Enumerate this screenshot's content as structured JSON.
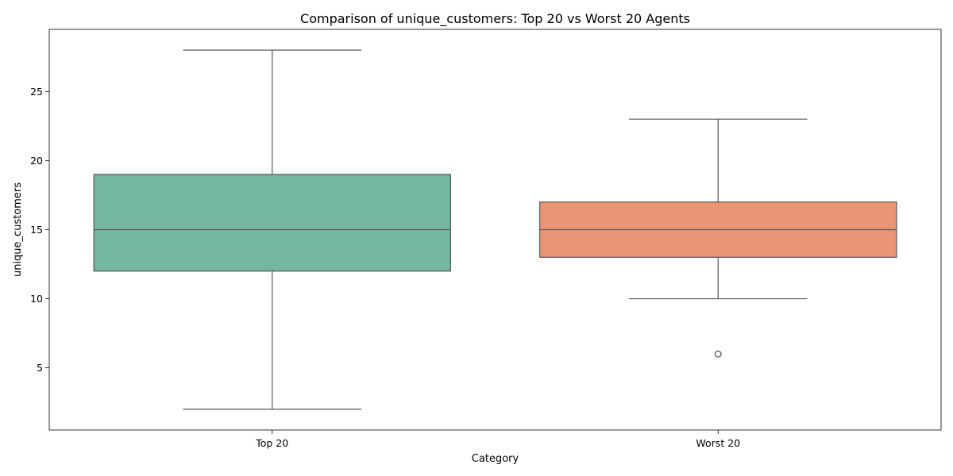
{
  "chart_data": {
    "type": "box",
    "title": "Comparison of unique_customers: Top 20 vs Worst 20 Agents",
    "xlabel": "Category",
    "ylabel": "unique_customers",
    "ylim": [
      0.5,
      29.5
    ],
    "yticks": [
      5,
      10,
      15,
      20,
      25
    ],
    "grid": false,
    "legend": "none",
    "line_color": "#555555",
    "categories": [
      "Top 20",
      "Worst 20"
    ],
    "boxes": [
      {
        "category": "Top 20",
        "whisker_low": 2,
        "q1": 12,
        "median": 15,
        "q3": 19,
        "whisker_high": 28,
        "outliers": [],
        "color": "#74b7a1"
      },
      {
        "category": "Worst 20",
        "whisker_low": 10,
        "q1": 13,
        "median": 15,
        "q3": 17,
        "whisker_high": 23,
        "outliers": [
          6
        ],
        "color": "#ea9674"
      }
    ]
  }
}
